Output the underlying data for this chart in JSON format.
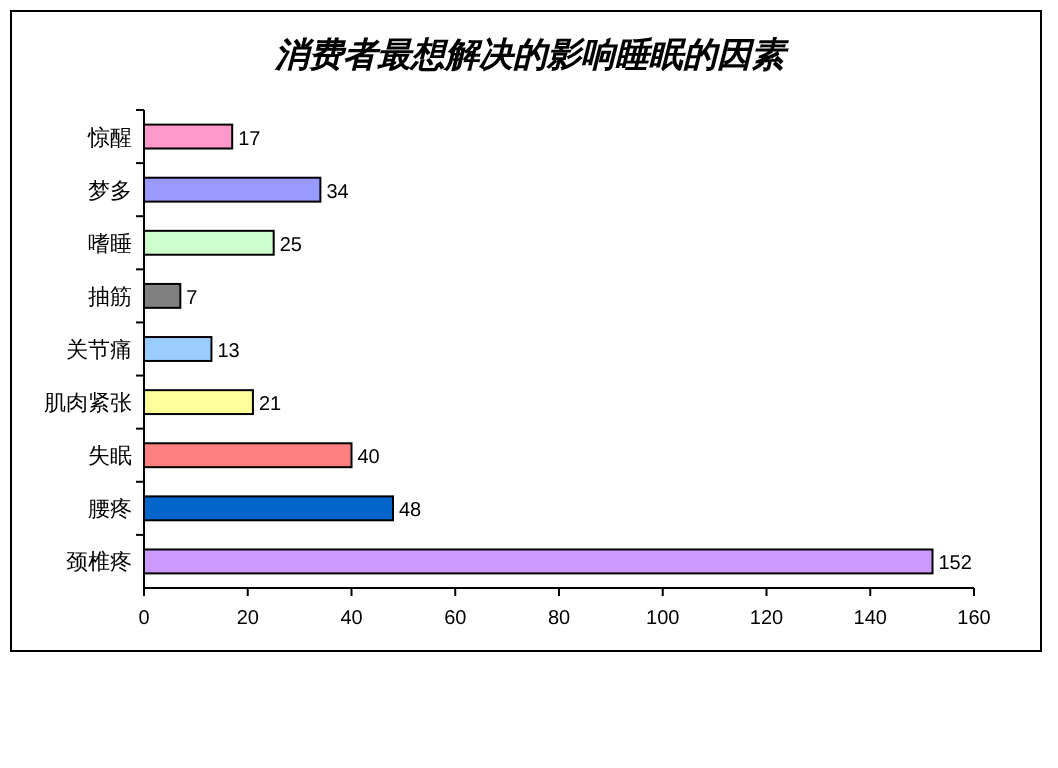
{
  "chart_data": {
    "type": "bar",
    "orientation": "horizontal",
    "title": "消费者最想解决的影响睡眠的因素",
    "categories": [
      "惊醒",
      "梦多",
      "嗜睡",
      "抽筋",
      "关节痛",
      "肌肉紧张",
      "失眠",
      "腰疼",
      "颈椎疼"
    ],
    "values": [
      17,
      34,
      25,
      7,
      13,
      21,
      40,
      48,
      152
    ],
    "colors": [
      "#ff99cc",
      "#9999ff",
      "#ccffcc",
      "#808080",
      "#99ccff",
      "#ffff99",
      "#ff8080",
      "#0066cc",
      "#cc99ff"
    ],
    "xlim": [
      0,
      160
    ],
    "xticks": [
      0,
      20,
      40,
      60,
      80,
      100,
      120,
      140,
      160
    ],
    "data_labels": true
  }
}
